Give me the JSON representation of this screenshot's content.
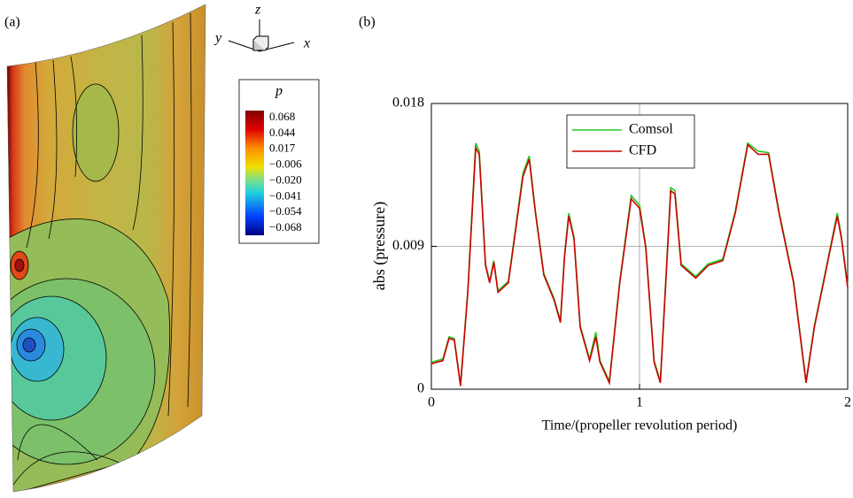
{
  "contour_panel": {
    "panel_label": "(a)",
    "axes": {
      "x": "x",
      "y": "y",
      "z": "z"
    },
    "colorbar": {
      "title": "p",
      "labels": [
        "0.068",
        "0.044",
        "0.017",
        "−0.006",
        "−0.020",
        "−0.041",
        "−0.054",
        "−0.068"
      ]
    }
  },
  "chart_data": {
    "type": "line",
    "panel_label": "(b)",
    "x_label": "Time/(propeller revolution period)",
    "y_label": "abs (pressure)",
    "x": [
      0,
      0.055,
      0.085,
      0.11,
      0.14,
      0.175,
      0.213,
      0.23,
      0.26,
      0.28,
      0.3,
      0.32,
      0.37,
      0.44,
      0.47,
      0.5,
      0.54,
      0.59,
      0.62,
      0.64,
      0.66,
      0.685,
      0.715,
      0.76,
      0.79,
      0.81,
      0.855,
      0.905,
      0.96,
      1.0,
      1.03,
      1.07,
      1.1,
      1.15,
      1.17,
      1.2,
      1.27,
      1.33,
      1.4,
      1.46,
      1.52,
      1.57,
      1.62,
      1.67,
      1.74,
      1.8,
      1.84,
      1.91,
      1.95,
      1.97,
      2.0
    ],
    "series": [
      {
        "name": "Comsol",
        "color": "#22cc22",
        "values": [
          0.0017,
          0.0019,
          0.0033,
          0.0032,
          0.0003,
          0.0062,
          0.0155,
          0.015,
          0.0079,
          0.0068,
          0.0081,
          0.0062,
          0.0068,
          0.0136,
          0.0147,
          0.0112,
          0.0073,
          0.0057,
          0.0043,
          0.0085,
          0.0111,
          0.0096,
          0.004,
          0.0019,
          0.0036,
          0.0018,
          0.0005,
          0.0068,
          0.0122,
          0.0116,
          0.009,
          0.0018,
          0.0005,
          0.0127,
          0.0125,
          0.0079,
          0.0071,
          0.0079,
          0.0082,
          0.0112,
          0.0155,
          0.015,
          0.0149,
          0.0112,
          0.0068,
          0.0005,
          0.004,
          0.0085,
          0.0111,
          0.0096,
          0.0065
        ]
      },
      {
        "name": "CFD",
        "color": "#cc0000",
        "values": [
          0.0016,
          0.0018,
          0.0032,
          0.0031,
          0.0002,
          0.0061,
          0.0152,
          0.0148,
          0.0078,
          0.0067,
          0.008,
          0.0061,
          0.0067,
          0.0134,
          0.0145,
          0.0111,
          0.0072,
          0.0056,
          0.0042,
          0.0084,
          0.0109,
          0.0095,
          0.0039,
          0.0018,
          0.0033,
          0.0017,
          0.0004,
          0.0067,
          0.012,
          0.0114,
          0.0089,
          0.0017,
          0.0004,
          0.0125,
          0.0123,
          0.0078,
          0.007,
          0.0078,
          0.0081,
          0.0111,
          0.0154,
          0.0148,
          0.0148,
          0.0111,
          0.0067,
          0.0004,
          0.0039,
          0.0084,
          0.0109,
          0.0095,
          0.0064
        ]
      }
    ],
    "xlim": [
      0,
      2
    ],
    "xticks": [
      0,
      1,
      2
    ],
    "ylim": [
      0,
      0.018
    ],
    "yticks": [
      0,
      0.009,
      0.018
    ],
    "grid": true,
    "legend": "upper-center"
  }
}
